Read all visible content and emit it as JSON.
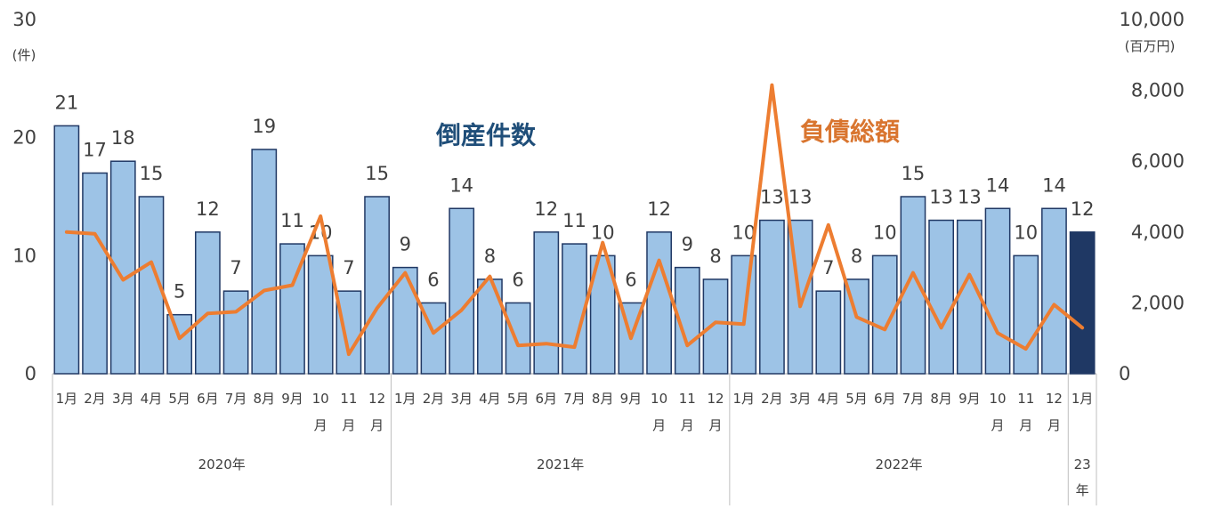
{
  "chart_data": {
    "type": "bar",
    "categories": [
      "1月",
      "2月",
      "3月",
      "4月",
      "5月",
      "6月",
      "7月",
      "8月",
      "9月",
      "10月",
      "11月",
      "12月",
      "1月",
      "2月",
      "3月",
      "4月",
      "5月",
      "6月",
      "7月",
      "8月",
      "9月",
      "10月",
      "11月",
      "12月",
      "1月",
      "2月",
      "3月",
      "4月",
      "5月",
      "6月",
      "7月",
      "8月",
      "9月",
      "10月",
      "11月",
      "12月",
      "1月"
    ],
    "category_groups": [
      {
        "label": "2020年",
        "span": 12
      },
      {
        "label": "2021年",
        "span": 12
      },
      {
        "label": "2022年",
        "span": 12
      },
      {
        "label": "23年",
        "span": 1
      }
    ],
    "series": [
      {
        "name": "倒産件数",
        "type": "bar",
        "axis": "left",
        "values": [
          21,
          17,
          18,
          15,
          5,
          12,
          7,
          19,
          11,
          10,
          7,
          15,
          9,
          6,
          14,
          8,
          6,
          12,
          11,
          10,
          6,
          12,
          9,
          8,
          10,
          13,
          13,
          7,
          8,
          10,
          15,
          13,
          13,
          14,
          10,
          14,
          12
        ],
        "color": "#9dc3e6",
        "edge_color": "#203864",
        "highlight_color": "#1f3864",
        "label_color": "#1f4e79"
      },
      {
        "name": "負債総額",
        "type": "line",
        "axis": "right",
        "values": [
          4000,
          3950,
          2650,
          3150,
          1000,
          1700,
          1750,
          2350,
          2500,
          4450,
          550,
          1850,
          2850,
          1150,
          1800,
          2750,
          800,
          850,
          750,
          3700,
          1000,
          3200,
          800,
          1450,
          1400,
          8150,
          1900,
          4200,
          1600,
          1250,
          2850,
          1300,
          2800,
          1150,
          700,
          1950,
          1300
        ],
        "color": "#ed7d31",
        "label_color": "#d9752f"
      }
    ],
    "y_left": {
      "min": 0,
      "max": 30,
      "ticks": [
        0,
        10,
        20,
        30
      ],
      "tick_labels": [
        "0",
        "10",
        "20",
        "30"
      ],
      "unit": "(件)"
    },
    "y_right": {
      "min": 0,
      "max": 10000,
      "ticks": [
        0,
        2000,
        4000,
        6000,
        8000,
        10000
      ],
      "tick_labels": [
        "0",
        "2,000",
        "4,000",
        "6,000",
        "8,000",
        "10,000"
      ],
      "unit": "(百万円)"
    },
    "grid": false
  }
}
